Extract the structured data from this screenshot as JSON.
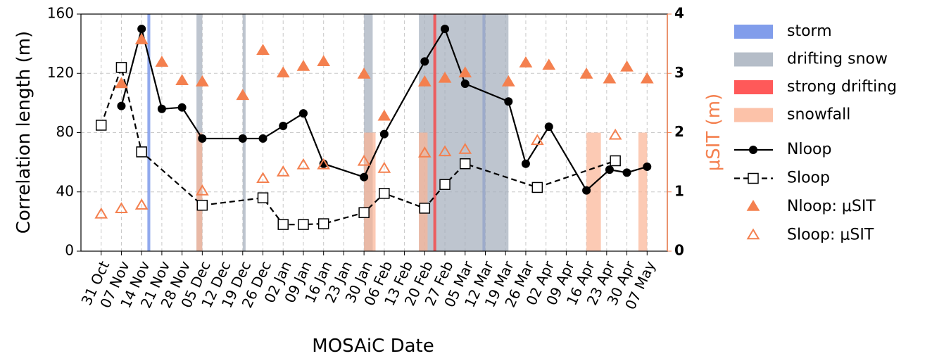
{
  "chart_data": {
    "type": "line",
    "xlabel": "MOSAiC Date",
    "ylabel": "Correlation length (m)",
    "y2label": "μSIT (m)",
    "y2color": "#f4804f",
    "xlim": [
      "24 Oct",
      "14 May"
    ],
    "xticks": [
      "31 Oct",
      "07 Nov",
      "14 Nov",
      "21 Nov",
      "28 Nov",
      "05 Dec",
      "12 Dec",
      "19 Dec",
      "26 Dec",
      "02 Jan",
      "09 Jan",
      "16 Jan",
      "23 Jan",
      "30 Jan",
      "06 Feb",
      "13 Feb",
      "20 Feb",
      "27 Feb",
      "05 Mar",
      "12 Mar",
      "19 Mar",
      "26 Mar",
      "02 Apr",
      "09 Apr",
      "16 Apr",
      "23 Apr",
      "30 Apr",
      "07 May"
    ],
    "ylim": [
      0,
      160
    ],
    "yticks": [
      0,
      40,
      80,
      120,
      160
    ],
    "y2lim": [
      0,
      4
    ],
    "y2ticks": [
      0,
      1,
      2,
      3,
      4
    ],
    "grid": true,
    "legend": "outside right",
    "events": [
      {
        "name": "storm",
        "color": "#6285e6",
        "spans": [
          [
            "16 Nov",
            "17 Nov"
          ],
          [
            "11 Mar",
            "12 Mar"
          ]
        ]
      },
      {
        "name": "drifting snow",
        "color": "#a2adba",
        "spans": [
          [
            "03 Dec",
            "05 Dec"
          ],
          [
            "19 Dec",
            "20 Dec"
          ],
          [
            "30 Jan",
            "02 Feb"
          ],
          [
            "18 Feb",
            "20 Mar"
          ]
        ]
      },
      {
        "name": "strong drifting",
        "color": "#ff3030",
        "spans": [
          [
            "23 Feb",
            "24 Feb"
          ]
        ]
      },
      {
        "name": "snowfall",
        "color": "#fbb394",
        "top": 80,
        "spans": [
          [
            "03 Dec",
            "05 Dec"
          ],
          [
            "30 Jan",
            "03 Feb"
          ],
          [
            "18 Feb",
            "21 Feb"
          ],
          [
            "16 Apr",
            "21 Apr"
          ],
          [
            "04 May",
            "07 May"
          ]
        ]
      }
    ],
    "series": [
      {
        "name": "Nloop",
        "color": "#000000",
        "marker": "circle",
        "markerfill": true,
        "linestyle": "solid",
        "x": [
          "07 Nov",
          "14 Nov",
          "21 Nov",
          "28 Nov",
          "05 Dec",
          "19 Dec",
          "26 Dec",
          "02 Jan",
          "09 Jan",
          "16 Jan",
          "30 Jan",
          "06 Feb",
          "20 Feb",
          "27 Feb",
          "05 Mar",
          "20 Mar",
          "26 Mar",
          "03 Apr",
          "16 Apr",
          "24 Apr",
          "30 Apr",
          "07 May"
        ],
        "values": [
          98,
          150,
          96,
          97,
          76,
          76,
          76,
          84.5,
          93,
          59,
          50,
          79,
          128,
          150,
          113,
          101,
          59,
          84,
          41,
          55,
          53,
          57
        ]
      },
      {
        "name": "Sloop",
        "color": "#000000",
        "marker": "square",
        "markerfill": false,
        "linestyle": "dashed",
        "x": [
          "31 Oct",
          "07 Nov",
          "14 Nov",
          "05 Dec",
          "26 Dec",
          "02 Jan",
          "09 Jan",
          "16 Jan",
          "30 Jan",
          "06 Feb",
          "20 Feb",
          "27 Feb",
          "05 Mar",
          "30 Mar",
          "26 Apr"
        ],
        "values": [
          85,
          124,
          67,
          31,
          36,
          18,
          18,
          18.5,
          26,
          39,
          29,
          45,
          59,
          43,
          61
        ]
      },
      {
        "name": "Nloop: μSIT",
        "color": "#f4804f",
        "marker": "triangle",
        "markerfill": true,
        "linestyle": "none",
        "axis": "y2",
        "x": [
          "07 Nov",
          "14 Nov",
          "21 Nov",
          "28 Nov",
          "05 Dec",
          "19 Dec",
          "26 Dec",
          "02 Jan",
          "09 Jan",
          "16 Jan",
          "30 Jan",
          "06 Feb",
          "20 Feb",
          "27 Feb",
          "05 Mar",
          "20 Mar",
          "26 Mar",
          "03 Apr",
          "16 Apr",
          "24 Apr",
          "30 Apr",
          "07 May"
        ],
        "values": [
          2.82,
          3.56,
          3.18,
          2.87,
          2.85,
          2.62,
          3.38,
          3.0,
          3.11,
          3.19,
          2.98,
          2.27,
          2.85,
          2.91,
          3.0,
          2.85,
          3.17,
          3.13,
          2.98,
          2.9,
          3.1,
          2.9
        ]
      },
      {
        "name": "Sloop: μSIT",
        "color": "#f4804f",
        "marker": "triangle",
        "markerfill": false,
        "linestyle": "none",
        "axis": "y2",
        "x": [
          "31 Oct",
          "07 Nov",
          "14 Nov",
          "05 Dec",
          "26 Dec",
          "02 Jan",
          "09 Jan",
          "16 Jan",
          "30 Jan",
          "06 Feb",
          "20 Feb",
          "27 Feb",
          "05 Mar",
          "30 Mar",
          "26 Apr"
        ],
        "values": [
          0.62,
          0.71,
          0.77,
          1.01,
          1.22,
          1.33,
          1.45,
          1.45,
          1.51,
          1.39,
          1.65,
          1.67,
          1.71,
          1.86,
          1.95
        ]
      }
    ]
  }
}
